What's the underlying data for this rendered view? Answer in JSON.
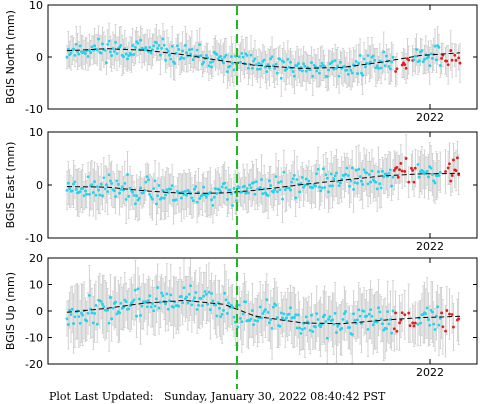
{
  "footer": {
    "label": "Plot Last Updated:",
    "timestamp": "Sunday, January 30, 2022 08:40:42 PST"
  },
  "colors": {
    "regular_points": "#22d3ee",
    "recent_points": "#e11d1d",
    "error_bars": "#c8c8c8",
    "trend_line": "#000000",
    "event_line": "#22b822",
    "frame": "#000000"
  },
  "chart_data": [
    {
      "type": "scatter",
      "ylabel": "BGIS North (mm)",
      "ylim": [
        -10,
        10
      ],
      "yticks": [
        -10,
        0,
        10
      ],
      "x_tick_label": "2022",
      "grid": false,
      "trend": [
        [
          0.0,
          1.2
        ],
        [
          0.1,
          1.6
        ],
        [
          0.2,
          1.3
        ],
        [
          0.3,
          0.4
        ],
        [
          0.4,
          -0.8
        ],
        [
          0.48,
          -1.6
        ],
        [
          0.6,
          -2.2
        ],
        [
          0.7,
          -2.0
        ],
        [
          0.8,
          -1.0
        ],
        [
          0.9,
          0.3
        ],
        [
          1.0,
          0.8
        ]
      ],
      "event_x": 0.45,
      "recent_ranges": [
        [
          0.83,
          0.88
        ],
        [
          0.95,
          1.0
        ]
      ],
      "noise": 1.4,
      "recent_offset": -1.2,
      "error_half": 3.0,
      "seed": 11
    },
    {
      "type": "scatter",
      "ylabel": "BGIS East (mm)",
      "ylim": [
        -10,
        10
      ],
      "yticks": [
        -10,
        0,
        10
      ],
      "x_tick_label": "2022",
      "grid": false,
      "trend": [
        [
          0.0,
          -0.3
        ],
        [
          0.1,
          -0.4
        ],
        [
          0.2,
          -1.1
        ],
        [
          0.3,
          -1.6
        ],
        [
          0.4,
          -1.5
        ],
        [
          0.48,
          -1.0
        ],
        [
          0.6,
          0.1
        ],
        [
          0.7,
          0.9
        ],
        [
          0.8,
          1.7
        ],
        [
          0.9,
          2.1
        ],
        [
          1.0,
          2.2
        ]
      ],
      "event_x": 0.45,
      "recent_ranges": [
        [
          0.83,
          0.89
        ],
        [
          0.95,
          1.0
        ]
      ],
      "noise": 1.6,
      "recent_offset": 0.6,
      "error_half": 3.6,
      "seed": 23
    },
    {
      "type": "scatter",
      "ylabel": "BGIS Up (mm)",
      "ylim": [
        -20,
        20
      ],
      "yticks": [
        -20,
        -10,
        0,
        10,
        20
      ],
      "x_tick_label": "2022",
      "grid": false,
      "trend": [
        [
          0.0,
          -0.5
        ],
        [
          0.1,
          1.0
        ],
        [
          0.2,
          3.0
        ],
        [
          0.3,
          4.0
        ],
        [
          0.4,
          2.5
        ],
        [
          0.48,
          -2.0
        ],
        [
          0.6,
          -4.5
        ],
        [
          0.7,
          -4.8
        ],
        [
          0.8,
          -3.5
        ],
        [
          0.9,
          -2.5
        ],
        [
          1.0,
          -2.0
        ]
      ],
      "event_x": 0.45,
      "recent_ranges": [
        [
          0.83,
          0.89
        ],
        [
          0.95,
          1.0
        ]
      ],
      "noise": 3.8,
      "recent_offset": 0.0,
      "error_half": 9.0,
      "seed": 37
    }
  ]
}
